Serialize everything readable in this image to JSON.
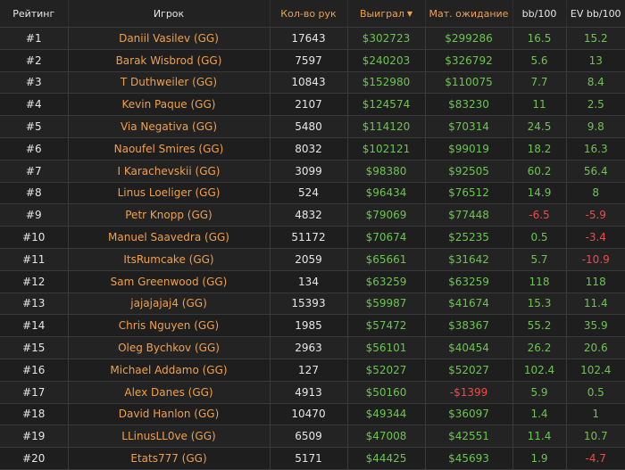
{
  "headers": {
    "rank": "Рейтинг",
    "player": "Игрок",
    "hands": "Кол-во рук",
    "won": "Выиграл",
    "ev": "Мат. ожидание",
    "bb100": "bb/100",
    "ev_bb100": "EV bb/100"
  },
  "rows": [
    {
      "rank": "#1",
      "player": "Daniil Vasilev (GG)",
      "hands": "17643",
      "won": "$302723",
      "ev": "$299286",
      "bb100": "16.5",
      "ev_bb100": "15.2",
      "won_neg": false,
      "ev_neg": false,
      "bb_neg": false,
      "evbb_neg": false
    },
    {
      "rank": "#2",
      "player": "Barak Wisbrod (GG)",
      "hands": "7597",
      "won": "$240203",
      "ev": "$326792",
      "bb100": "5.6",
      "ev_bb100": "13",
      "won_neg": false,
      "ev_neg": false,
      "bb_neg": false,
      "evbb_neg": false
    },
    {
      "rank": "#3",
      "player": "T Duthweiler (GG)",
      "hands": "10843",
      "won": "$152980",
      "ev": "$110075",
      "bb100": "7.7",
      "ev_bb100": "8.4",
      "won_neg": false,
      "ev_neg": false,
      "bb_neg": false,
      "evbb_neg": false
    },
    {
      "rank": "#4",
      "player": "Kevin Paque (GG)",
      "hands": "2107",
      "won": "$124574",
      "ev": "$83230",
      "bb100": "11",
      "ev_bb100": "2.5",
      "won_neg": false,
      "ev_neg": false,
      "bb_neg": false,
      "evbb_neg": false
    },
    {
      "rank": "#5",
      "player": "Via Negativa (GG)",
      "hands": "5480",
      "won": "$114120",
      "ev": "$70314",
      "bb100": "24.5",
      "ev_bb100": "9.8",
      "won_neg": false,
      "ev_neg": false,
      "bb_neg": false,
      "evbb_neg": false
    },
    {
      "rank": "#6",
      "player": "Naoufel Smires (GG)",
      "hands": "8032",
      "won": "$102121",
      "ev": "$99019",
      "bb100": "18.2",
      "ev_bb100": "16.3",
      "won_neg": false,
      "ev_neg": false,
      "bb_neg": false,
      "evbb_neg": false
    },
    {
      "rank": "#7",
      "player": "I Karachevskii (GG)",
      "hands": "3099",
      "won": "$98380",
      "ev": "$92505",
      "bb100": "60.2",
      "ev_bb100": "56.4",
      "won_neg": false,
      "ev_neg": false,
      "bb_neg": false,
      "evbb_neg": false
    },
    {
      "rank": "#8",
      "player": "Linus Loeliger (GG)",
      "hands": "524",
      "won": "$96434",
      "ev": "$76512",
      "bb100": "14.9",
      "ev_bb100": "8",
      "won_neg": false,
      "ev_neg": false,
      "bb_neg": false,
      "evbb_neg": false
    },
    {
      "rank": "#9",
      "player": "Petr Knopp (GG)",
      "hands": "4832",
      "won": "$79069",
      "ev": "$77448",
      "bb100": "-6.5",
      "ev_bb100": "-5.9",
      "won_neg": false,
      "ev_neg": false,
      "bb_neg": true,
      "evbb_neg": true
    },
    {
      "rank": "#10",
      "player": "Manuel Saavedra (GG)",
      "hands": "51172",
      "won": "$70674",
      "ev": "$25235",
      "bb100": "0.5",
      "ev_bb100": "-3.4",
      "won_neg": false,
      "ev_neg": false,
      "bb_neg": false,
      "evbb_neg": true
    },
    {
      "rank": "#11",
      "player": "ItsRumcake (GG)",
      "hands": "2059",
      "won": "$65661",
      "ev": "$31642",
      "bb100": "5.7",
      "ev_bb100": "-10.9",
      "won_neg": false,
      "ev_neg": false,
      "bb_neg": false,
      "evbb_neg": true
    },
    {
      "rank": "#12",
      "player": "Sam Greenwood (GG)",
      "hands": "134",
      "won": "$63259",
      "ev": "$63259",
      "bb100": "118",
      "ev_bb100": "118",
      "won_neg": false,
      "ev_neg": false,
      "bb_neg": false,
      "evbb_neg": false
    },
    {
      "rank": "#13",
      "player": "jajajajaj4 (GG)",
      "hands": "15393",
      "won": "$59987",
      "ev": "$41674",
      "bb100": "15.3",
      "ev_bb100": "11.4",
      "won_neg": false,
      "ev_neg": false,
      "bb_neg": false,
      "evbb_neg": false
    },
    {
      "rank": "#14",
      "player": "Chris Nguyen (GG)",
      "hands": "1985",
      "won": "$57472",
      "ev": "$38367",
      "bb100": "55.2",
      "ev_bb100": "35.9",
      "won_neg": false,
      "ev_neg": false,
      "bb_neg": false,
      "evbb_neg": false
    },
    {
      "rank": "#15",
      "player": "Oleg Bychkov (GG)",
      "hands": "2963",
      "won": "$56101",
      "ev": "$40454",
      "bb100": "26.2",
      "ev_bb100": "20.6",
      "won_neg": false,
      "ev_neg": false,
      "bb_neg": false,
      "evbb_neg": false
    },
    {
      "rank": "#16",
      "player": "Michael Addamo (GG)",
      "hands": "127",
      "won": "$52027",
      "ev": "$52027",
      "bb100": "102.4",
      "ev_bb100": "102.4",
      "won_neg": false,
      "ev_neg": false,
      "bb_neg": false,
      "evbb_neg": false
    },
    {
      "rank": "#17",
      "player": "Alex Danes (GG)",
      "hands": "4913",
      "won": "$50160",
      "ev": "-$1399",
      "bb100": "5.9",
      "ev_bb100": "0.5",
      "won_neg": false,
      "ev_neg": true,
      "bb_neg": false,
      "evbb_neg": false
    },
    {
      "rank": "#18",
      "player": "David Hanlon (GG)",
      "hands": "10470",
      "won": "$49344",
      "ev": "$36097",
      "bb100": "1.4",
      "ev_bb100": "1",
      "won_neg": false,
      "ev_neg": false,
      "bb_neg": false,
      "evbb_neg": false
    },
    {
      "rank": "#19",
      "player": "LLinusLL0ve (GG)",
      "hands": "6509",
      "won": "$47008",
      "ev": "$42551",
      "bb100": "11.4",
      "ev_bb100": "10.7",
      "won_neg": false,
      "ev_neg": false,
      "bb_neg": false,
      "evbb_neg": false
    },
    {
      "rank": "#20",
      "player": "Etats777 (GG)",
      "hands": "5171",
      "won": "$44425",
      "ev": "$45693",
      "bb100": "1.9",
      "ev_bb100": "-4.7",
      "won_neg": false,
      "ev_neg": false,
      "bb_neg": false,
      "evbb_neg": true
    }
  ],
  "colors": {
    "accent": "#f0a04b",
    "positive": "#6cc54f",
    "negative": "#ef4b4b",
    "background": "#1b1b1b"
  },
  "icons": {
    "sort": "sort-desc-caret-icon"
  }
}
